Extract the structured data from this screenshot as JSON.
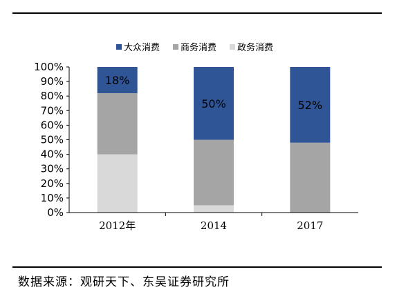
{
  "chart_data": {
    "type": "bar",
    "stacked": true,
    "normalized": true,
    "categories": [
      "2012年",
      "2014",
      "2017"
    ],
    "series": [
      {
        "name": "政务消费",
        "color": "#d9d9d9",
        "values": [
          40,
          5,
          0
        ]
      },
      {
        "name": "商务消费",
        "color": "#a5a5a5",
        "values": [
          42,
          45,
          48
        ]
      },
      {
        "name": "大众消费",
        "color": "#2f5597",
        "values": [
          18,
          50,
          52
        ]
      }
    ],
    "data_labels": [
      "18%",
      "50%",
      "52%"
    ],
    "legend_order": [
      "大众消费",
      "商务消费",
      "政务消费"
    ],
    "legend_position": "top",
    "y_ticks": [
      "0%",
      "10%",
      "20%",
      "30%",
      "40%",
      "50%",
      "60%",
      "70%",
      "80%",
      "90%",
      "100%"
    ],
    "ylim": [
      0,
      100
    ],
    "grid": false
  },
  "source_text": "数据来源：观研天下、东吴证券研究所"
}
